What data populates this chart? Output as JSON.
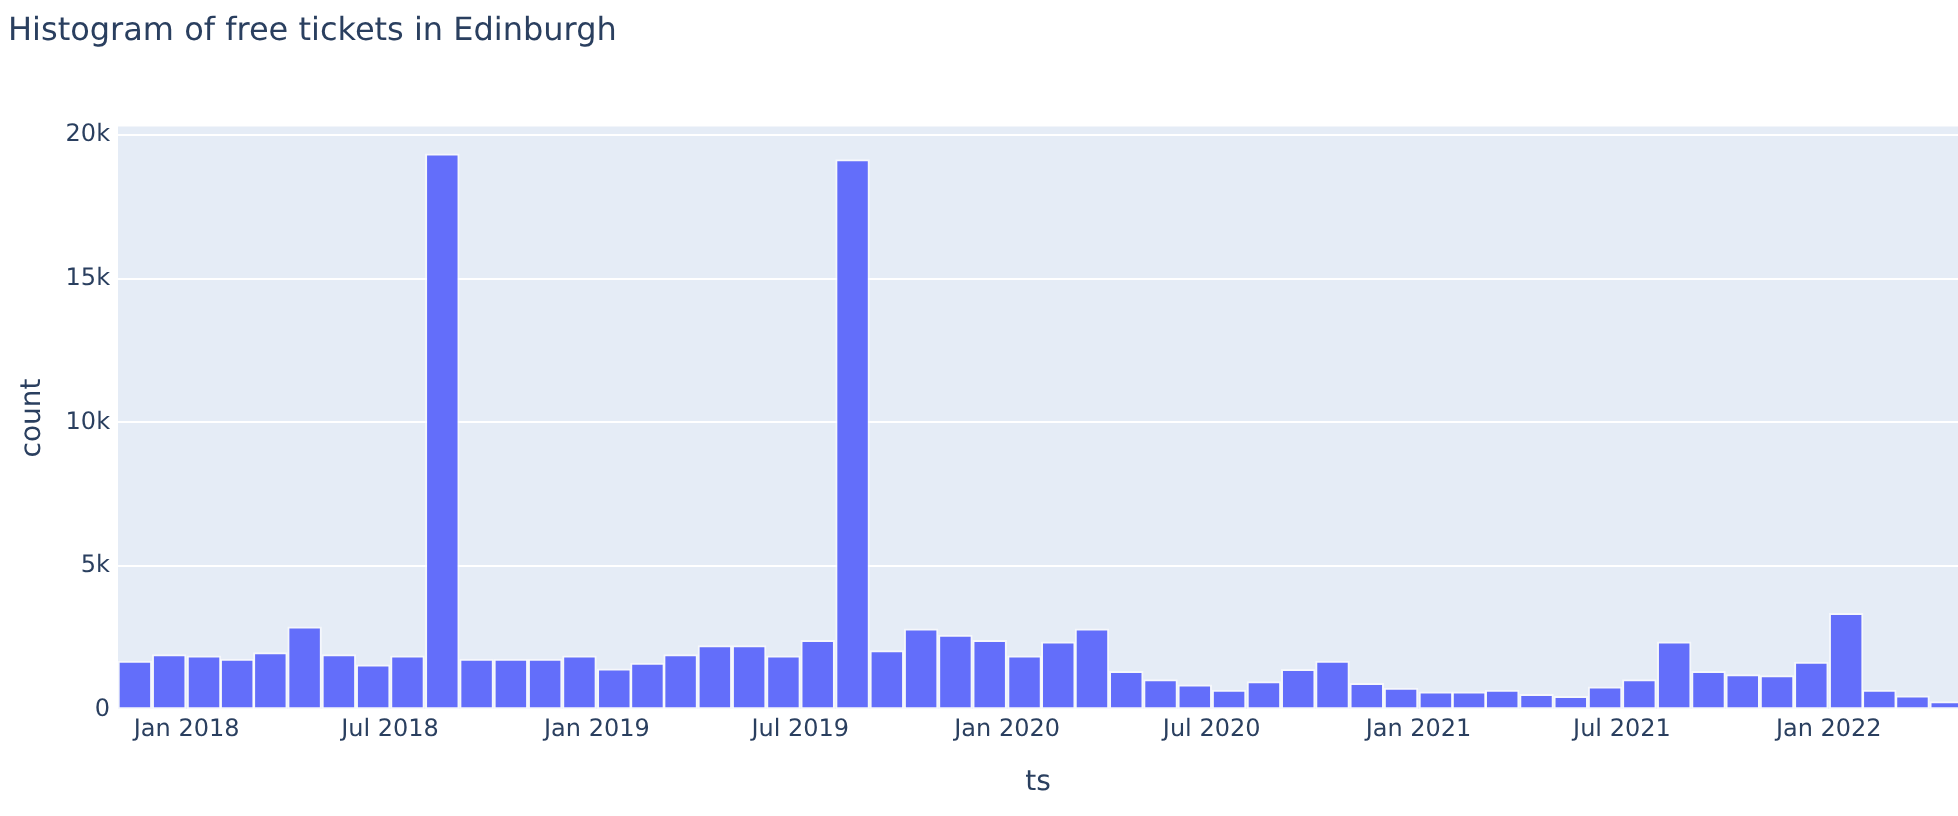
{
  "chart_data": {
    "type": "histogram",
    "title": "Histogram of free tickets in Edinburgh",
    "xlabel": "ts",
    "ylabel": "count",
    "bins": [
      "2017-11",
      "2017-12",
      "2018-01",
      "2018-02",
      "2018-03",
      "2018-04",
      "2018-05",
      "2018-06",
      "2018-07",
      "2018-08",
      "2018-09",
      "2018-10",
      "2018-11",
      "2018-12",
      "2019-01",
      "2019-02",
      "2019-03",
      "2019-04",
      "2019-05",
      "2019-06",
      "2019-07",
      "2019-08",
      "2019-09",
      "2019-10",
      "2019-11",
      "2019-12",
      "2020-01",
      "2020-02",
      "2020-03",
      "2020-04",
      "2020-05",
      "2020-06",
      "2020-07",
      "2020-08",
      "2020-09",
      "2020-10",
      "2020-11",
      "2020-12",
      "2021-01",
      "2021-02",
      "2021-03",
      "2021-04",
      "2021-05",
      "2021-06",
      "2021-07",
      "2021-08",
      "2021-09",
      "2021-10",
      "2021-11",
      "2021-12",
      "2022-01",
      "2022-02",
      "2022-03",
      "2022-04",
      "2022-05"
    ],
    "values": [
      1680,
      1900,
      1860,
      1750,
      1970,
      2870,
      1900,
      1550,
      1860,
      19330,
      1750,
      1750,
      1750,
      1860,
      1410,
      1610,
      1900,
      2220,
      2220,
      1860,
      2400,
      19130,
      2040,
      2800,
      2580,
      2400,
      1860,
      2350,
      2800,
      1320,
      1030,
      850,
      670,
      960,
      1390,
      1680,
      900,
      740,
      610,
      610,
      670,
      520,
      450,
      780,
      1030,
      2350,
      1320,
      1210,
      1170,
      1640,
      3340,
      670,
      470,
      270
    ],
    "color": "#636efa",
    "xlim": [
      "2017-11",
      "2022-04-26"
    ],
    "xticks": [
      {
        "value": "2018-01",
        "label": "Jan 2018"
      },
      {
        "value": "2018-07",
        "label": "Jul 2018"
      },
      {
        "value": "2019-01",
        "label": "Jan 2019"
      },
      {
        "value": "2019-07",
        "label": "Jul 2019"
      },
      {
        "value": "2020-01",
        "label": "Jan 2020"
      },
      {
        "value": "2020-07",
        "label": "Jul 2020"
      },
      {
        "value": "2021-01",
        "label": "Jan 2021"
      },
      {
        "value": "2021-07",
        "label": "Jul 2021"
      },
      {
        "value": "2022-01",
        "label": "Jan 2022"
      }
    ],
    "ylim": [
      0,
      20300
    ],
    "yticks": [
      0,
      {
        "value": 5000,
        "label": "5k"
      },
      {
        "value": 10000,
        "label": "10k"
      },
      {
        "value": 15000,
        "label": "15k"
      },
      {
        "value": 20000,
        "label": "20k"
      }
    ],
    "grid": "y",
    "legend": false
  }
}
